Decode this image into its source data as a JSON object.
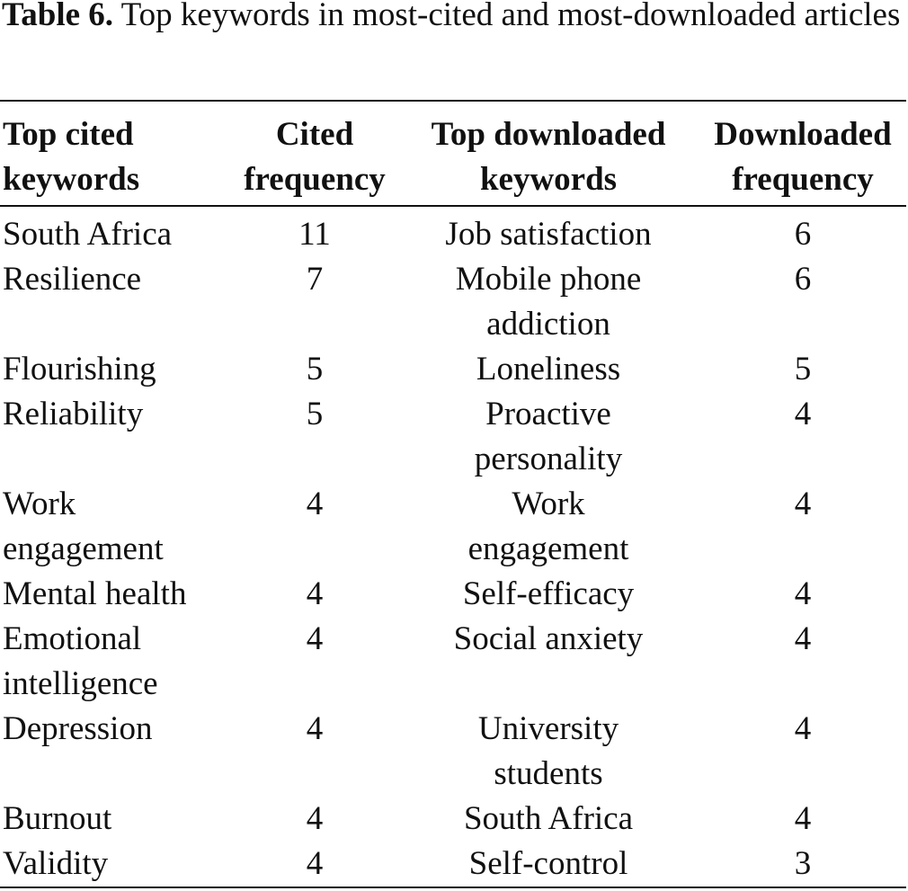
{
  "caption": {
    "label": "Table 6.",
    "text": " Top keywords in most-cited and most-downloaded articles"
  },
  "table": {
    "headers": [
      [
        "Top cited",
        "keywords"
      ],
      [
        "Cited",
        "frequency"
      ],
      [
        "Top downloaded",
        "keywords"
      ],
      [
        "Downloaded",
        "frequency"
      ]
    ],
    "rows": [
      {
        "cited_keyword": [
          "South Africa"
        ],
        "cited_freq": "11",
        "downloaded_keyword": [
          "Job satisfaction"
        ],
        "downloaded_freq": "6"
      },
      {
        "cited_keyword": [
          "Resilience"
        ],
        "cited_freq": "7",
        "downloaded_keyword": [
          "Mobile phone",
          "addiction"
        ],
        "downloaded_freq": "6"
      },
      {
        "cited_keyword": [
          "Flourishing"
        ],
        "cited_freq": "5",
        "downloaded_keyword": [
          "Loneliness"
        ],
        "downloaded_freq": "5"
      },
      {
        "cited_keyword": [
          "Reliability"
        ],
        "cited_freq": "5",
        "downloaded_keyword": [
          "Proactive",
          "personality"
        ],
        "downloaded_freq": "4"
      },
      {
        "cited_keyword": [
          "Work",
          "engagement"
        ],
        "cited_freq": "4",
        "downloaded_keyword": [
          "Work",
          "engagement"
        ],
        "downloaded_freq": "4"
      },
      {
        "cited_keyword": [
          "Mental health"
        ],
        "cited_freq": "4",
        "downloaded_keyword": [
          "Self-efficacy"
        ],
        "downloaded_freq": "4"
      },
      {
        "cited_keyword": [
          "Emotional",
          "intelligence"
        ],
        "cited_freq": "4",
        "downloaded_keyword": [
          "Social anxiety"
        ],
        "downloaded_freq": "4"
      },
      {
        "cited_keyword": [
          "Depression"
        ],
        "cited_freq": "4",
        "downloaded_keyword": [
          "University",
          "students"
        ],
        "downloaded_freq": "4"
      },
      {
        "cited_keyword": [
          "Burnout"
        ],
        "cited_freq": "4",
        "downloaded_keyword": [
          "South Africa"
        ],
        "downloaded_freq": "4"
      },
      {
        "cited_keyword": [
          "Validity"
        ],
        "cited_freq": "4",
        "downloaded_keyword": [
          "Self-control"
        ],
        "downloaded_freq": "3"
      }
    ]
  }
}
